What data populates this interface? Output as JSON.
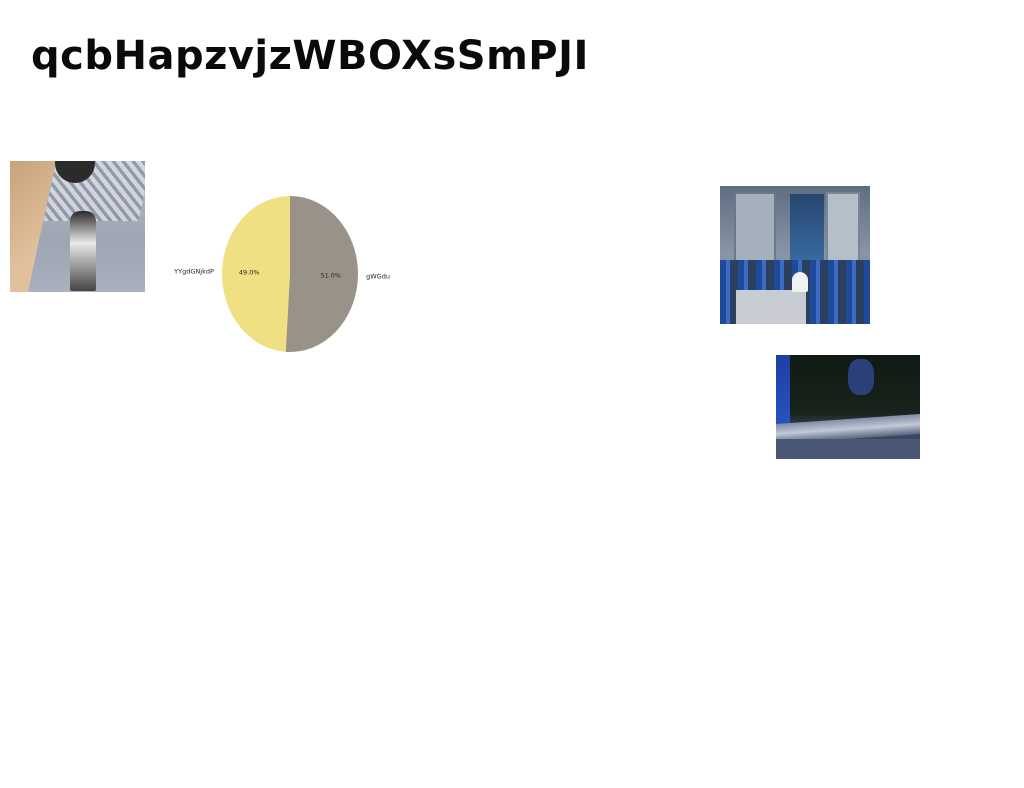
{
  "page": {
    "title": "qcbHapzvjzWBOXsSmPJI"
  },
  "photos": [
    {
      "name": "building-facade-photo"
    },
    {
      "name": "dining-room-photo"
    },
    {
      "name": "aerial-coast-photo"
    }
  ],
  "chart_data": {
    "type": "pie",
    "title": "",
    "categories": [
      "YYgdGNjkdP",
      "gWGdu"
    ],
    "values": [
      49.0,
      51.0
    ],
    "percent_labels": [
      "49.0%",
      "51.0%"
    ],
    "colors": [
      "#f0e084",
      "#999289"
    ],
    "legend": "none",
    "start_angle": "90 degrees, counterclockwise"
  }
}
